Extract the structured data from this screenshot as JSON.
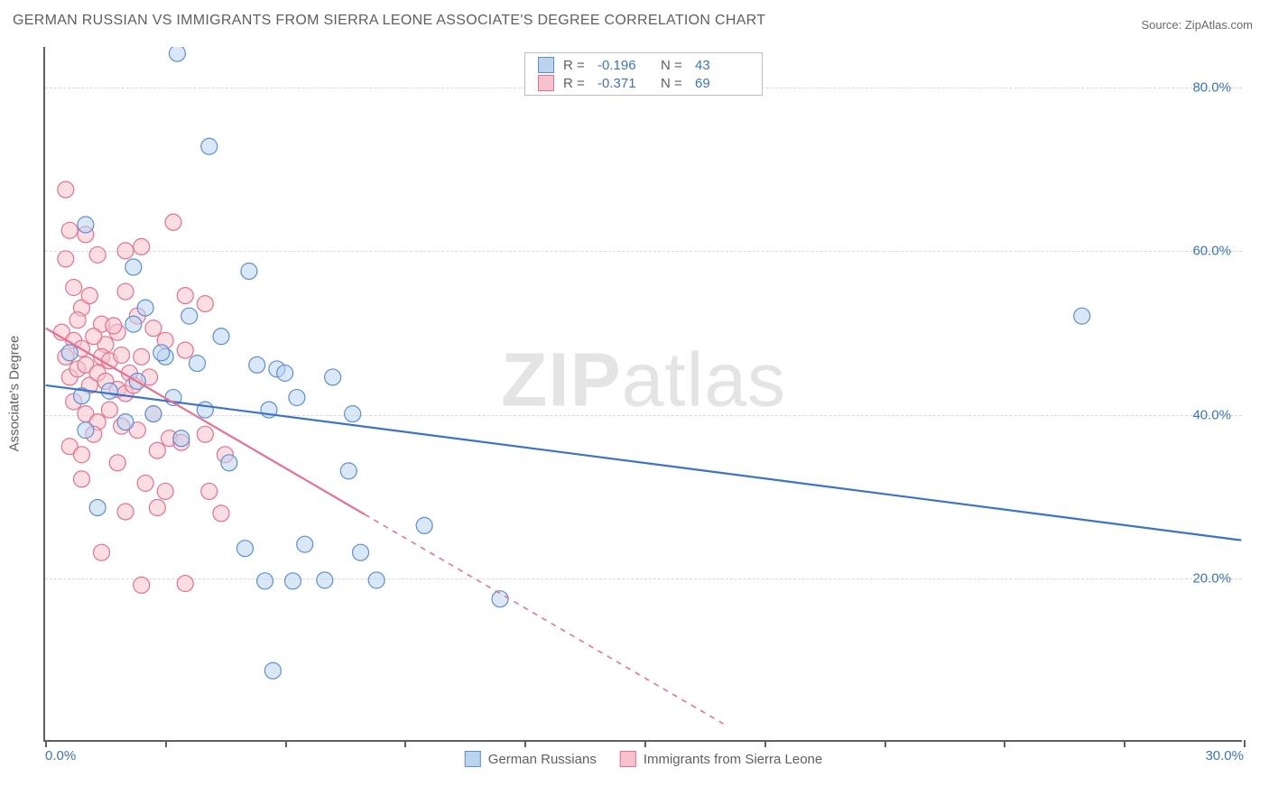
{
  "title": "GERMAN RUSSIAN VS IMMIGRANTS FROM SIERRA LEONE ASSOCIATE'S DEGREE CORRELATION CHART",
  "source_label": "Source: ZipAtlas.com",
  "watermark_bold": "ZIP",
  "watermark_light": "atlas",
  "chart": {
    "type": "scatter",
    "background_color": "#ffffff",
    "grid_color": "#d9d9d9",
    "axis_color": "#5f5f5f",
    "xlim": [
      0,
      30
    ],
    "ylim": [
      0,
      85
    ],
    "x_ticks": [
      0,
      3,
      6,
      9,
      12,
      15,
      18,
      21,
      24,
      27,
      30
    ],
    "x_tick_labels": {
      "0": "0.0%",
      "30": "30.0%"
    },
    "y_gridlines": [
      20,
      40,
      60,
      80
    ],
    "y_tick_labels": {
      "20": "20.0%",
      "40": "40.0%",
      "60": "60.0%",
      "80": "80.0%"
    },
    "ylabel": "Associate's Degree",
    "marker_radius": 9,
    "marker_stroke_width": 1.2,
    "series": [
      {
        "name": "German Russians",
        "fill": "#bcd3ee",
        "stroke": "#5a8fd6",
        "fill_opacity": 0.55,
        "R": "-0.196",
        "N": "43",
        "trend": {
          "x1": 0,
          "y1": 43.5,
          "x2": 30,
          "y2": 24.5,
          "solid_until_x": 30,
          "color": "#3b74c4",
          "width": 2.2
        },
        "points": [
          [
            3.3,
            84.2
          ],
          [
            4.1,
            72.8
          ],
          [
            1.0,
            63.2
          ],
          [
            2.5,
            53.0
          ],
          [
            2.2,
            58.0
          ],
          [
            5.1,
            57.5
          ],
          [
            3.6,
            52.0
          ],
          [
            4.4,
            49.5
          ],
          [
            2.2,
            51.0
          ],
          [
            0.9,
            42.2
          ],
          [
            1.0,
            38.0
          ],
          [
            1.6,
            42.8
          ],
          [
            2.3,
            44.0
          ],
          [
            2.7,
            40.0
          ],
          [
            3.0,
            47.0
          ],
          [
            3.4,
            37.0
          ],
          [
            4.0,
            40.5
          ],
          [
            4.6,
            34.0
          ],
          [
            5.3,
            46.0
          ],
          [
            5.6,
            40.5
          ],
          [
            5.8,
            45.5
          ],
          [
            6.0,
            45.0
          ],
          [
            6.3,
            42.0
          ],
          [
            7.2,
            44.5
          ],
          [
            6.5,
            24.0
          ],
          [
            7.6,
            33.0
          ],
          [
            7.7,
            40.0
          ],
          [
            3.8,
            46.2
          ],
          [
            5.0,
            23.5
          ],
          [
            5.5,
            19.5
          ],
          [
            6.2,
            19.5
          ],
          [
            7.0,
            19.6
          ],
          [
            8.3,
            19.6
          ],
          [
            9.5,
            26.3
          ],
          [
            7.9,
            23.0
          ],
          [
            5.7,
            8.5
          ],
          [
            1.3,
            28.5
          ],
          [
            2.0,
            39.0
          ],
          [
            11.4,
            17.3
          ],
          [
            26.0,
            52.0
          ],
          [
            2.9,
            47.5
          ],
          [
            3.2,
            42.0
          ],
          [
            0.6,
            47.5
          ]
        ]
      },
      {
        "name": "Immigrants from Sierra Leone",
        "fill": "#f6c2ce",
        "stroke": "#ea6f8d",
        "fill_opacity": 0.55,
        "R": "-0.371",
        "N": "69",
        "trend": {
          "x1": 0,
          "y1": 50.5,
          "x2": 17,
          "y2": 2,
          "solid_until_x": 8,
          "color": "#ea6f8d",
          "width": 2.2
        },
        "points": [
          [
            0.5,
            67.5
          ],
          [
            0.6,
            62.5
          ],
          [
            1.0,
            62.0
          ],
          [
            1.3,
            59.5
          ],
          [
            2.0,
            60.0
          ],
          [
            2.4,
            60.5
          ],
          [
            3.2,
            63.5
          ],
          [
            0.7,
            55.5
          ],
          [
            0.9,
            53.0
          ],
          [
            1.1,
            54.5
          ],
          [
            1.4,
            51.0
          ],
          [
            1.5,
            48.5
          ],
          [
            1.8,
            50.0
          ],
          [
            2.0,
            55.0
          ],
          [
            2.3,
            52.0
          ],
          [
            2.4,
            47.0
          ],
          [
            2.7,
            50.5
          ],
          [
            3.0,
            49.0
          ],
          [
            3.5,
            47.8
          ],
          [
            3.5,
            54.5
          ],
          [
            4.0,
            53.5
          ],
          [
            0.4,
            50.0
          ],
          [
            0.5,
            47.0
          ],
          [
            0.6,
            44.5
          ],
          [
            0.7,
            49.0
          ],
          [
            0.8,
            51.5
          ],
          [
            0.8,
            45.5
          ],
          [
            0.9,
            48.0
          ],
          [
            1.0,
            46.0
          ],
          [
            1.1,
            43.5
          ],
          [
            1.2,
            49.5
          ],
          [
            1.3,
            45.0
          ],
          [
            1.4,
            47.0
          ],
          [
            1.5,
            44.0
          ],
          [
            1.6,
            46.5
          ],
          [
            1.8,
            43.0
          ],
          [
            1.9,
            47.2
          ],
          [
            2.0,
            42.5
          ],
          [
            2.1,
            45.0
          ],
          [
            2.2,
            43.5
          ],
          [
            0.7,
            41.5
          ],
          [
            1.0,
            40.0
          ],
          [
            1.3,
            39.0
          ],
          [
            1.6,
            40.5
          ],
          [
            1.9,
            38.5
          ],
          [
            2.3,
            38.0
          ],
          [
            2.7,
            40.0
          ],
          [
            3.1,
            37.0
          ],
          [
            2.8,
            35.5
          ],
          [
            3.4,
            36.5
          ],
          [
            4.0,
            37.5
          ],
          [
            4.5,
            35.0
          ],
          [
            0.6,
            36.0
          ],
          [
            0.9,
            35.0
          ],
          [
            1.8,
            34.0
          ],
          [
            2.5,
            31.5
          ],
          [
            3.0,
            30.5
          ],
          [
            4.1,
            30.5
          ],
          [
            0.9,
            32.0
          ],
          [
            2.0,
            28.0
          ],
          [
            2.8,
            28.5
          ],
          [
            4.4,
            27.8
          ],
          [
            1.4,
            23.0
          ],
          [
            2.4,
            19.0
          ],
          [
            3.5,
            19.2
          ],
          [
            1.7,
            50.8
          ],
          [
            0.5,
            59.0
          ],
          [
            2.6,
            44.5
          ],
          [
            1.2,
            37.5
          ]
        ]
      }
    ]
  },
  "legend_top": {
    "R_label": "R =",
    "N_label": "N =",
    "border_color": "#bfbfbf",
    "value_color": "#3b74c4"
  },
  "legend_bottom": {
    "series1_label": "German Russians",
    "series2_label": "Immigrants from Sierra Leone"
  }
}
